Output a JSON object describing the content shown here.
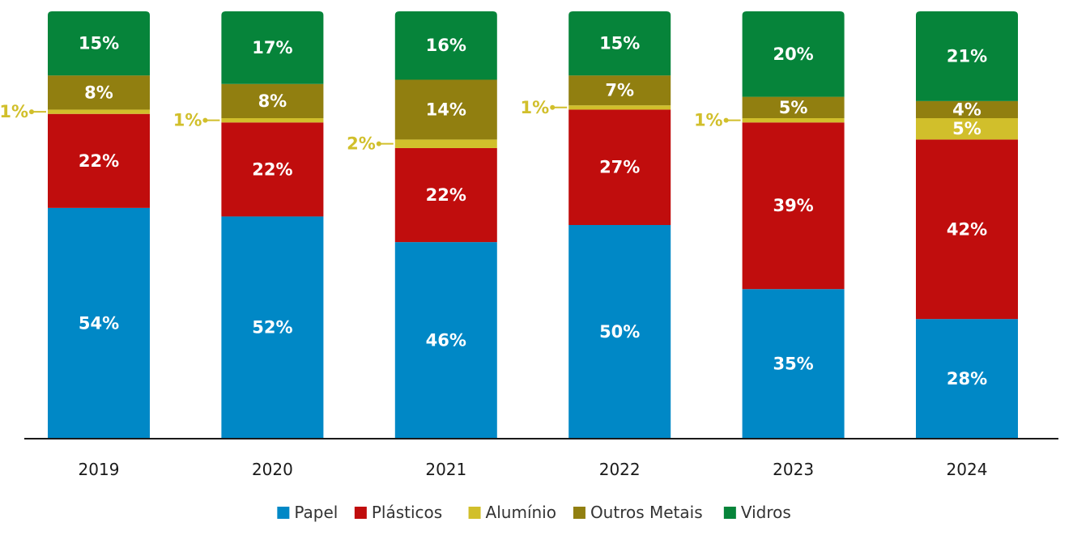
{
  "chart_data": {
    "type": "bar",
    "stacked": true,
    "normalized": true,
    "categories": [
      "2019",
      "2020",
      "2021",
      "2022",
      "2023",
      "2024"
    ],
    "series": [
      {
        "name": "Papel",
        "color": "#0088c6",
        "values": [
          54,
          52,
          46,
          50,
          35,
          28
        ]
      },
      {
        "name": "Plásticos",
        "color": "#c00d0d",
        "values": [
          22,
          22,
          22,
          27,
          39,
          42
        ]
      },
      {
        "name": "Alumínio",
        "color": "#d1bf2b",
        "values": [
          1,
          1,
          2,
          1,
          1,
          5
        ]
      },
      {
        "name": "Outros Metais",
        "color": "#917f10",
        "values": [
          8,
          8,
          14,
          7,
          5,
          4
        ]
      },
      {
        "name": "Vidros",
        "color": "#06843a",
        "values": [
          15,
          17,
          16,
          15,
          20,
          21
        ]
      }
    ],
    "data_labels": [
      [
        "54%",
        "22%",
        "1%",
        "8%",
        "15%"
      ],
      [
        "52%",
        "22%",
        "1%",
        "8%",
        "17%"
      ],
      [
        "46%",
        "22%",
        "2%",
        "14%",
        "16%"
      ],
      [
        "50%",
        "27%",
        "1%",
        "7%",
        "15%"
      ],
      [
        "35%",
        "39%",
        "1%",
        "5%",
        "20%"
      ],
      [
        "28%",
        "42%",
        "5%",
        "4%",
        "21%"
      ]
    ],
    "ylim": [
      0,
      100
    ],
    "grid": false,
    "legend_position": "bottom",
    "title": "",
    "xlabel": "",
    "ylabel": ""
  }
}
